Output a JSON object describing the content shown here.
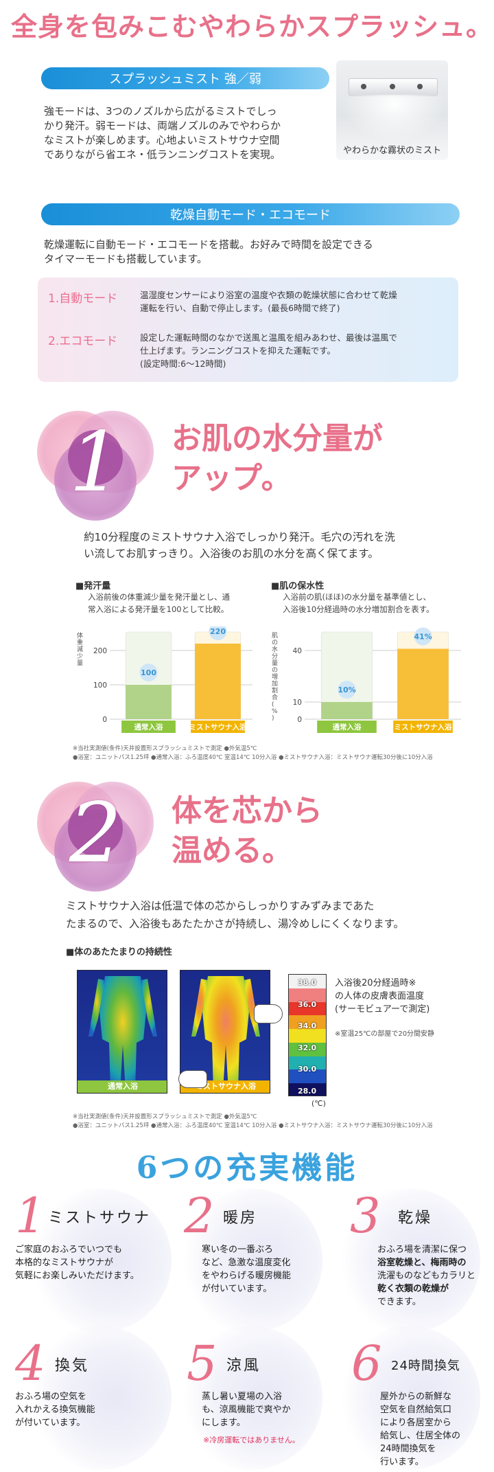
{
  "headline": "全身を包みこむやわらかスプラッシュ。",
  "mist": {
    "bar_label": "スプラッシュミスト 強／弱",
    "paragraph": [
      "強モードは、3つのノズルから広がるミストでしっ",
      "かり発汗。弱モードは、両端ノズルのみでやわらか",
      "なミストが楽しめます。心地よいミストサウナ空間",
      "でありながら省エネ・低ランニングコストを実現。"
    ],
    "photo_caption": "やわらかな霧状のミスト"
  },
  "dry": {
    "bar_label": "乾燥自動モード・エコモード",
    "paragraph": [
      "乾燥運転に自動モード・エコモードを搭載。お好みで時間を設定できる",
      "タイマーモードも搭載しています。"
    ],
    "modes": [
      {
        "label": "1.自動モード",
        "desc": [
          "温湿度センサーにより浴室の温度や衣類の乾燥状態に合わせて乾燥",
          "運転を行い、自動で停止します。(最長6時間で終了)"
        ]
      },
      {
        "label": "2.エコモード",
        "desc": [
          "設定した運転時間のなかで送風と温風を組みあわせ、最後は温風で",
          "仕上げます。ランニングコストを抑えた運転です。",
          "(設定時間:6〜12時間)"
        ]
      }
    ]
  },
  "sec1": {
    "number": "1",
    "title": [
      "お肌の水分量が",
      "アップ。"
    ],
    "paragraph": [
      "約10分程度のミストサウナ入浴でしっかり発汗。毛穴の汚れを洗",
      "い流してお肌すっきり。入浴後のお肌の水分を高く保てます。"
    ],
    "chart1": {
      "heading": "■発汗量",
      "caption": [
        "入浴前後の体重減少量を発汗量とし、通",
        "常入浴による発汗量を100として比較。"
      ],
      "ylabel": "体重減少量"
    },
    "chart2": {
      "heading": "■肌の保水性",
      "caption": [
        "入浴前の肌(ほほ)の水分量を基準値とし、",
        "入浴後10分経過時の水分増加割合を表す。"
      ],
      "ylabel": "肌の水分量の増加割合(%)"
    },
    "notes": [
      "※当社実測値(条件)天井設置形スプラッシュミストで測定 ●外気温5℃",
      "●浴室：ユニットバス1.25坪 ●通常入浴：ふろ温度40℃ 室温14℃ 10分入浴 ●ミストサウナ入浴：ミストサウナ運転30分後に10分入浴"
    ]
  },
  "chart_data": [
    {
      "type": "bar",
      "categories": [
        "通常入浴",
        "ミストサウナ入浴"
      ],
      "values": [
        100,
        220
      ],
      "labels": [
        "100",
        "220"
      ],
      "ylabel": "体重減少量",
      "yticks": [
        0,
        100,
        200
      ],
      "ylim": [
        0,
        250
      ]
    },
    {
      "type": "bar",
      "categories": [
        "通常入浴",
        "ミストサウナ入浴"
      ],
      "values": [
        10,
        41
      ],
      "labels": [
        "10%",
        "41%"
      ],
      "ylabel": "肌の水分量の増加割合(%)",
      "yticks": [
        0,
        10,
        40
      ],
      "ylim": [
        0,
        50
      ]
    }
  ],
  "sec2": {
    "number": "2",
    "title": [
      "体を芯から",
      "温める。"
    ],
    "paragraph": [
      "ミストサウナ入浴は低温で体の芯からしっかりすみずみまであた",
      "たまるので、入浴後もあたたかさが持続し、湯冷めしにくくなります。"
    ],
    "heading": "■体のあたたまりの持続性",
    "thermo_labels": [
      "通常入浴",
      "ミストサウナ入浴"
    ],
    "scale": [
      "38.0",
      "36.0",
      "34.0",
      "32.0",
      "30.0",
      "28.0"
    ],
    "scale_unit": "(℃)",
    "scale_colors": [
      "#f2f2f2",
      "#f08080",
      "#e8362a",
      "#f0a020",
      "#f0e020",
      "#60c040",
      "#20b0b0",
      "#2050c0",
      "#101060"
    ],
    "legend_text": [
      "入浴後20分経過時※",
      "の人体の皮膚表面温度",
      "(サーモビュアーで測定)"
    ],
    "legend_note": "※室温25℃の部屋で20分間安静",
    "notes": [
      "※当社実測値(条件)天井設置形スプラッシュミストで測定 ●外気温5℃",
      "●浴室：ユニットバス1.25坪 ●通常入浴：ふろ温度40℃ 室温14℃ 10分入浴 ●ミストサウナ入浴：ミストサウナ運転30分後に10分入浴"
    ]
  },
  "features": {
    "title": "6つの充実機能",
    "items": [
      {
        "num": "1",
        "name": "ミストサウナ",
        "desc": [
          "ご家庭のおふろでいつでも",
          "本格的なミストサウナが",
          "気軽にお楽しみいただけます。"
        ]
      },
      {
        "num": "2",
        "name": "暖房",
        "desc": [
          "寒い冬の一番ぶろ",
          "など、急激な温度変化",
          "をやわらげる暖房機能",
          "が付いています。"
        ]
      },
      {
        "num": "3",
        "name": "乾燥",
        "desc": [
          "おふろ場を清潔に保つ",
          "浴室乾燥と、梅雨時の",
          "洗濯ものなどもカラリと",
          "乾く衣類の乾燥が",
          "できます。"
        ]
      },
      {
        "num": "4",
        "name": "換気",
        "desc": [
          "おふろ場の空気を",
          "入れかえる換気機能",
          "が付いています。"
        ]
      },
      {
        "num": "5",
        "name": "涼風",
        "desc": [
          "蒸し暑い夏場の入浴",
          "も、涼風機能で爽やか",
          "にします。"
        ],
        "note": "※冷房運転ではありません。"
      },
      {
        "num": "6",
        "name": "24時間換気",
        "desc": [
          "屋外からの新鮮な",
          "空気を自然給気口",
          "により各居室から",
          "給気し、住居全体の",
          "24時間換気を",
          "行います。"
        ]
      }
    ]
  }
}
